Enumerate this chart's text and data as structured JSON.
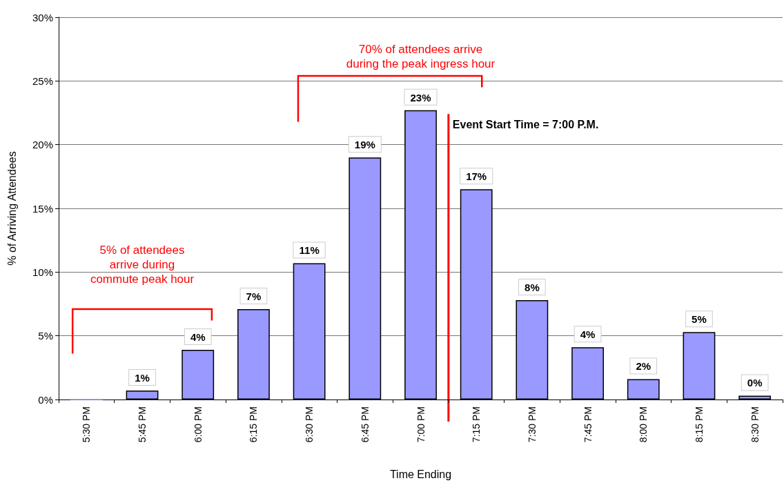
{
  "chart_data": {
    "type": "bar",
    "xlabel": "Time Ending",
    "ylabel": "% of Arriving Attendees",
    "categories": [
      "5:30 PM",
      "5:45 PM",
      "6:00 PM",
      "6:15 PM",
      "6:30 PM",
      "6:45 PM",
      "7:00 PM",
      "7:15 PM",
      "7:30 PM",
      "7:45 PM",
      "8:00 PM",
      "8:15 PM",
      "8:30 PM"
    ],
    "values": [
      0,
      0.7,
      3.9,
      7.1,
      10.7,
      19.0,
      22.7,
      16.5,
      7.8,
      4.1,
      1.6,
      5.3,
      0.3
    ],
    "value_labels": [
      null,
      "1%",
      "4%",
      "7%",
      "11%",
      "19%",
      "23%",
      "17%",
      "8%",
      "4%",
      "2%",
      "5%",
      "0%"
    ],
    "color": "#9999ff",
    "ylim": [
      0,
      30
    ],
    "yticks": [
      {
        "value": 0,
        "label": "0%"
      },
      {
        "value": 5,
        "label": "5%"
      },
      {
        "value": 10,
        "label": "10%"
      },
      {
        "value": 15,
        "label": "15%"
      },
      {
        "value": 20,
        "label": "20%"
      },
      {
        "value": 25,
        "label": "25%"
      },
      {
        "value": 30,
        "label": "30%"
      }
    ],
    "grid": "y",
    "ref_lines": [
      {
        "axis": "x",
        "value": "7:00 PM",
        "label": "Event Start Time = 7:00 P.M.",
        "color": "#ff0000"
      }
    ],
    "annotations": [
      "5% of attendees\narrive during\ncommute peak hour",
      "70% of attendees arrive\nduring the peak ingress hour"
    ]
  }
}
